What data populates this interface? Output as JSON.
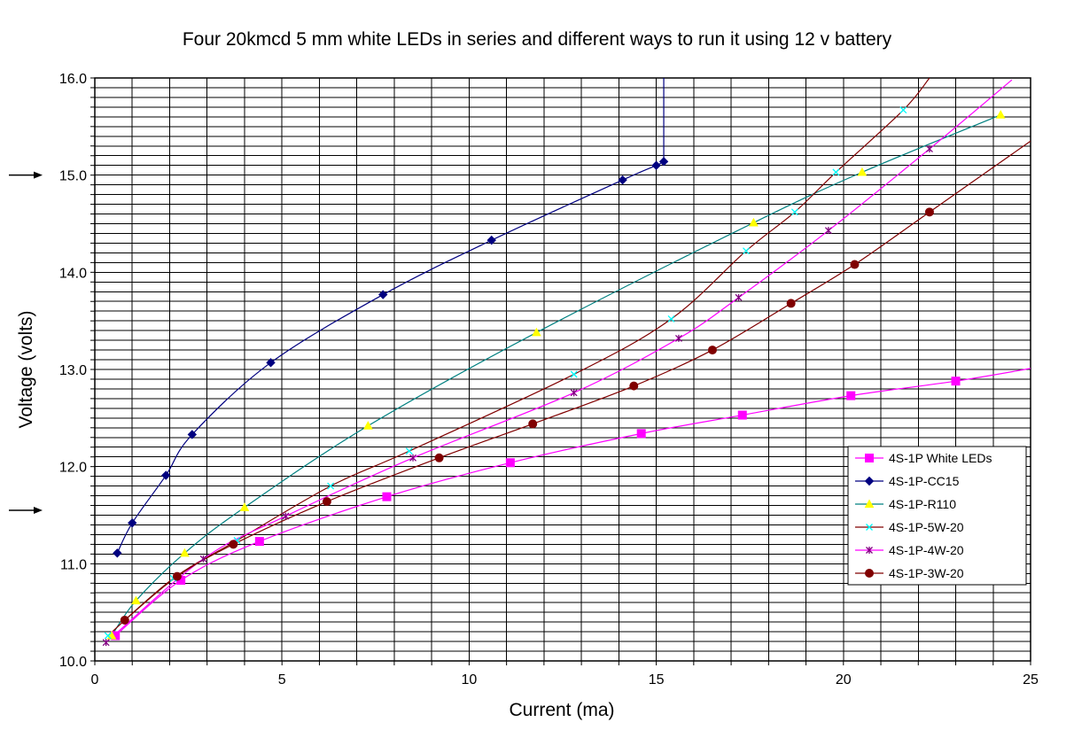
{
  "chart_data": {
    "type": "line",
    "title": "Four 20kmcd 5 mm white LEDs in series and different ways to run it using 12 v battery",
    "xlabel": "Current (ma)",
    "ylabel": "Voltage (volts)",
    "xlim": [
      0,
      25
    ],
    "ylim": [
      10.0,
      16.0
    ],
    "x_ticks": [
      0,
      5,
      10,
      15,
      20,
      25
    ],
    "x_tick_labels": [
      "0",
      "5",
      "10",
      "15",
      "20",
      "25"
    ],
    "y_ticks": [
      10,
      11,
      12,
      13,
      14,
      15,
      16
    ],
    "y_tick_labels": [
      "10.0",
      "11.0",
      "12.0",
      "13.0",
      "14.0",
      "15.0",
      "16.0"
    ],
    "x_minor_step": 1,
    "y_minor_step": 0.1,
    "grid": true,
    "legend_position": "right",
    "arrow_markers_y": [
      15.0,
      11.55
    ],
    "series": [
      {
        "name": "4S-1P White LEDs",
        "marker": "square",
        "marker_color": "#ff00ff",
        "line_color": "#ff00ff",
        "points": [
          [
            0.55,
            10.26
          ],
          [
            2.3,
            10.83
          ],
          [
            4.4,
            11.23
          ],
          [
            7.8,
            11.69
          ],
          [
            11.1,
            12.04
          ],
          [
            14.6,
            12.34
          ],
          [
            17.3,
            12.53
          ],
          [
            20.2,
            12.73
          ],
          [
            23.0,
            12.88
          ]
        ],
        "trend_to": [
          25.0,
          13.01
        ]
      },
      {
        "name": "4S-1P-CC15",
        "marker": "diamond",
        "marker_color": "#000080",
        "line_color": "#000080",
        "points": [
          [
            0.6,
            11.11
          ],
          [
            1.0,
            11.42
          ],
          [
            1.9,
            11.91
          ],
          [
            2.6,
            12.33
          ],
          [
            4.7,
            13.07
          ],
          [
            7.7,
            13.77
          ],
          [
            10.6,
            14.33
          ],
          [
            14.1,
            14.95
          ],
          [
            15.0,
            15.1
          ],
          [
            15.2,
            15.14
          ]
        ],
        "trend_to": [
          15.2,
          16.0
        ]
      },
      {
        "name": "4S-1P-R110",
        "marker": "triangle",
        "marker_color": "#ffff00",
        "line_color": "#008080",
        "points": [
          [
            0.45,
            10.26
          ],
          [
            1.1,
            10.62
          ],
          [
            2.4,
            11.11
          ],
          [
            4.0,
            11.58
          ],
          [
            7.3,
            12.42
          ],
          [
            11.8,
            13.38
          ],
          [
            17.6,
            14.51
          ],
          [
            20.5,
            15.03
          ],
          [
            24.2,
            15.62
          ]
        ],
        "trend_to": [
          24.2,
          15.62
        ]
      },
      {
        "name": "4S-1P-5W-20",
        "marker": "x",
        "marker_color": "#00ffff",
        "line_color": "#800000",
        "points": [
          [
            0.35,
            10.26
          ],
          [
            2.1,
            10.85
          ],
          [
            3.8,
            11.24
          ],
          [
            6.3,
            11.8
          ],
          [
            8.4,
            12.16
          ],
          [
            12.8,
            12.95
          ],
          [
            15.4,
            13.52
          ],
          [
            17.4,
            14.22
          ],
          [
            18.7,
            14.62
          ],
          [
            19.8,
            15.03
          ],
          [
            21.6,
            15.67
          ]
        ],
        "trend_to": [
          22.3,
          16.0
        ]
      },
      {
        "name": "4S-1P-4W-20",
        "marker": "star",
        "marker_color": "#800080",
        "line_color": "#ff00ff",
        "points": [
          [
            0.3,
            10.19
          ],
          [
            2.9,
            11.05
          ],
          [
            5.1,
            11.49
          ],
          [
            8.5,
            12.09
          ],
          [
            12.8,
            12.76
          ],
          [
            15.6,
            13.32
          ],
          [
            17.2,
            13.74
          ],
          [
            19.6,
            14.43
          ],
          [
            22.3,
            15.27
          ]
        ],
        "trend_to": [
          24.5,
          15.98
        ]
      },
      {
        "name": "4S-1P-3W-20",
        "marker": "circle",
        "marker_color": "#800000",
        "line_color": "#800000",
        "points": [
          [
            0.8,
            10.42
          ],
          [
            2.2,
            10.87
          ],
          [
            3.7,
            11.2
          ],
          [
            6.2,
            11.64
          ],
          [
            9.2,
            12.09
          ],
          [
            11.7,
            12.44
          ],
          [
            14.4,
            12.83
          ],
          [
            16.5,
            13.2
          ],
          [
            18.6,
            13.68
          ],
          [
            20.3,
            14.08
          ],
          [
            22.3,
            14.62
          ]
        ],
        "trend_to": [
          25.0,
          15.35
        ]
      }
    ]
  }
}
